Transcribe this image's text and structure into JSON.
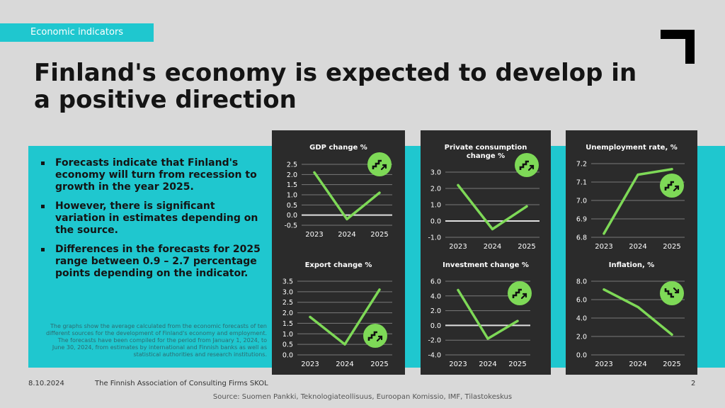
{
  "header": {
    "tag": "Economic indicators"
  },
  "title": "Finland's economy is expected to develop in a positive direction",
  "bullets": [
    "Forecasts indicate that Finland's economy will turn from recession to growth in the year 2025.",
    "However, there is significant variation in estimates depending on the source.",
    "Differences in the forecasts for 2025 range between 0.9 – 2.7 percentage points depending on the indicator."
  ],
  "note": "The graphs show the average calculated from the economic forecasts of ten different sources for the development of Finland's economy and employment. The forecasts have been compiled for the period from January 1, 2024, to June 30, 2024, from estimates by international and Finnish banks as well as statistical authorities and research institutions.",
  "footer": {
    "date": "8.10.2024",
    "org": "The Finnish Association of Consulting Firms SKOL",
    "page": "2",
    "source": "Source: Suomen Pankki, Teknologiateollisuus, Euroopan Komissio, IMF, Tilastokeskus"
  },
  "colors": {
    "accent": "#1fc7cf",
    "line": "#7ed957",
    "panel": "#2b2b2b",
    "badge": "#7ed957"
  },
  "chart_data": [
    {
      "type": "line",
      "title": [
        "GDP change %"
      ],
      "x": [
        "2023",
        "2024",
        "2025"
      ],
      "values": [
        2.1,
        -0.2,
        1.1
      ],
      "ylim": [
        -0.5,
        2.5
      ],
      "yticks": [
        "-0.5",
        "0.0",
        "0.5",
        "1.0",
        "1.5",
        "2.0",
        "2.5"
      ],
      "zero": true,
      "trend": "up",
      "trend_icon": "stairs-up-icon"
    },
    {
      "type": "line",
      "title": [
        "Private consumption",
        "change %"
      ],
      "x": [
        "2023",
        "2024",
        "2025"
      ],
      "values": [
        2.2,
        -0.5,
        0.9
      ],
      "ylim": [
        -1.0,
        3.0
      ],
      "yticks": [
        "-1.0",
        "0.0",
        "1.0",
        "2.0",
        "3.0"
      ],
      "zero": true,
      "trend": "up",
      "trend_icon": "stairs-up-icon"
    },
    {
      "type": "line",
      "title": [
        "Unemployment rate, %"
      ],
      "x": [
        "2023",
        "2024",
        "2025"
      ],
      "values": [
        6.82,
        7.14,
        7.17
      ],
      "ylim": [
        6.8,
        7.2
      ],
      "yticks": [
        "6.8",
        "6.9",
        "7.0",
        "7.1",
        "7.2"
      ],
      "zero": false,
      "trend": "up",
      "trend_icon": "stairs-up-icon"
    },
    {
      "type": "line",
      "title": [
        "Export change %"
      ],
      "x": [
        "2023",
        "2024",
        "2025"
      ],
      "values": [
        1.8,
        0.5,
        3.1
      ],
      "ylim": [
        0.0,
        3.5
      ],
      "yticks": [
        "0.0",
        "0.5",
        "1.0",
        "1.5",
        "2.0",
        "2.5",
        "3.0",
        "3.5"
      ],
      "zero": false,
      "trend": "up",
      "trend_icon": "stairs-up-icon"
    },
    {
      "type": "line",
      "title": [
        "Investment change %"
      ],
      "x": [
        "2023",
        "2024",
        "2025"
      ],
      "values": [
        4.8,
        -1.8,
        0.6
      ],
      "ylim": [
        -4.0,
        6.0
      ],
      "yticks": [
        "-4.0",
        "-2.0",
        "0.0",
        "2.0",
        "4.0",
        "6.0"
      ],
      "zero": true,
      "trend": "up",
      "trend_icon": "stairs-up-icon"
    },
    {
      "type": "line",
      "title": [
        "Inflation, %"
      ],
      "x": [
        "2023",
        "2024",
        "2025"
      ],
      "values": [
        7.1,
        5.2,
        2.2
      ],
      "ylim": [
        0.0,
        8.0
      ],
      "yticks": [
        "0.0",
        "2.0",
        "4.0",
        "6.0",
        "8.0"
      ],
      "zero": false,
      "trend": "down",
      "trend_icon": "stairs-down-icon"
    }
  ]
}
